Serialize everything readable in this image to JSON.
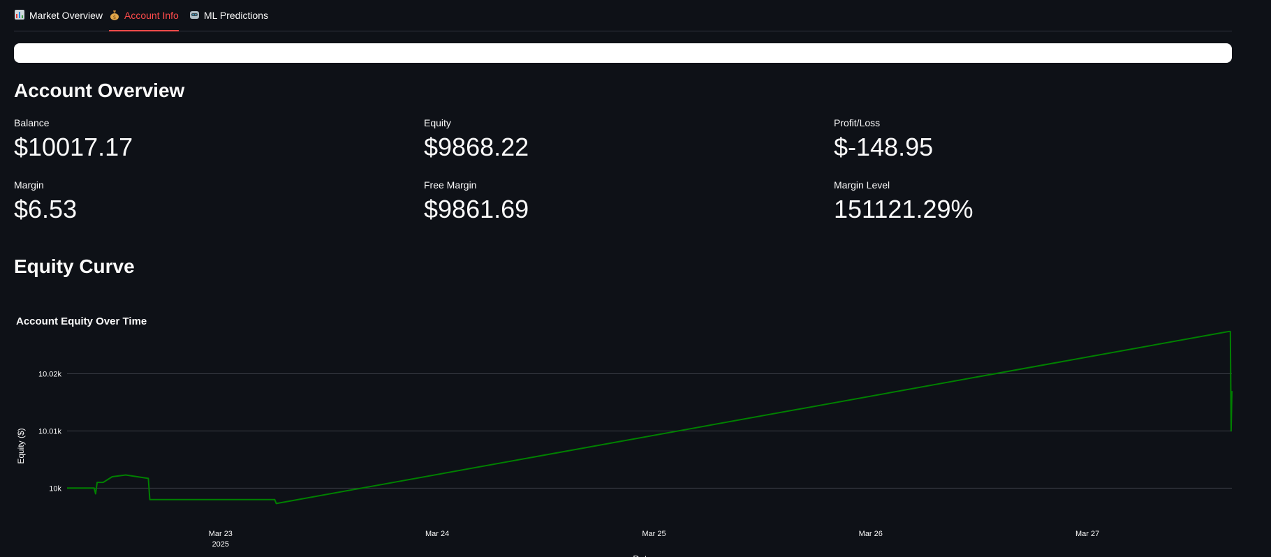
{
  "tabs": [
    {
      "label": "Market Overview",
      "icon": "bar-chart-icon",
      "active": false
    },
    {
      "label": "Account Info",
      "icon": "money-bag-icon",
      "active": true
    },
    {
      "label": "ML Predictions",
      "icon": "robot-icon",
      "active": false
    }
  ],
  "overview_title": "Account Overview",
  "metrics": [
    {
      "label": "Balance",
      "value": "$10017.17"
    },
    {
      "label": "Equity",
      "value": "$9868.22"
    },
    {
      "label": "Profit/Loss",
      "value": "$-148.95"
    },
    {
      "label": "Margin",
      "value": "$6.53"
    },
    {
      "label": "Free Margin",
      "value": "$9861.69"
    },
    {
      "label": "Margin Level",
      "value": "151121.29%"
    }
  ],
  "equity_section_title": "Equity Curve",
  "colors": {
    "accent": "#ff4b4b",
    "line": "#008000",
    "background": "#0e1117",
    "grid": "#3a3d46"
  },
  "chart_data": {
    "type": "line",
    "title": "Account Equity Over Time",
    "xlabel": "Date",
    "ylabel": "Equity ($)",
    "xlim": [
      "2025-03-22 07:00",
      "2025-03-27 16:00"
    ],
    "ylim": [
      9996.5,
      10028
    ],
    "x_ticks": [
      "Mar 23",
      "Mar 24",
      "Mar 25",
      "Mar 26",
      "Mar 27"
    ],
    "x_tick_year": "2025",
    "y_ticks": [
      "10k",
      "10.01k",
      "10.02k"
    ],
    "y_tick_values": [
      10000,
      10010,
      10020
    ],
    "grid": true,
    "series": [
      {
        "points": [
          [
            "2025-03-22 07:00",
            10000
          ],
          [
            "2025-03-22 10:00",
            10000
          ],
          [
            "2025-03-22 10:10",
            9999
          ],
          [
            "2025-03-22 10:20",
            10001
          ],
          [
            "2025-03-22 11:00",
            10001
          ],
          [
            "2025-03-22 12:00",
            10002
          ],
          [
            "2025-03-22 13:30",
            10002.3
          ],
          [
            "2025-03-22 16:00",
            10001.7
          ],
          [
            "2025-03-22 16:10",
            9998
          ],
          [
            "2025-03-23 06:00",
            9998
          ],
          [
            "2025-03-23 06:10",
            9997.3
          ],
          [
            "2025-03-27 15:40",
            10027.4
          ],
          [
            "2025-03-27 15:50",
            10027.4
          ],
          [
            "2025-03-27 15:55",
            10010
          ],
          [
            "2025-03-27 16:00",
            10017
          ]
        ]
      }
    ]
  }
}
